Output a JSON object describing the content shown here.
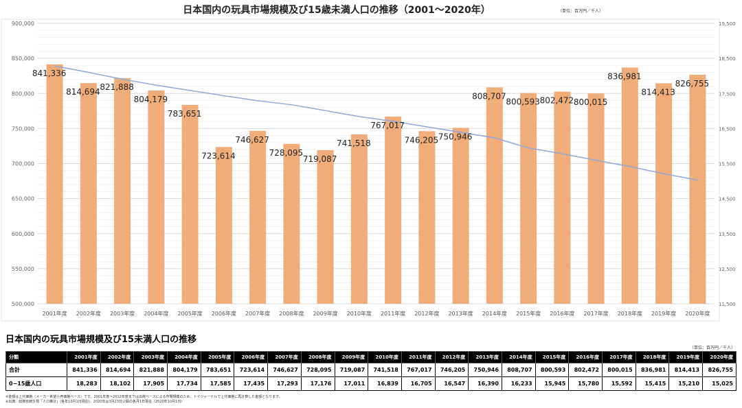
{
  "chart_data": {
    "type": "bar",
    "title": "日本国内の玩具市場規模及び15歳未満人口の推移（2001〜2020年）",
    "unit_note": "（単位：百万円／千人）",
    "categories": [
      "2001年度",
      "2002年度",
      "2003年度",
      "2004年度",
      "2005年度",
      "2006年度",
      "2007年度",
      "2008年度",
      "2009年度",
      "2010年度",
      "2011年度",
      "2012年度",
      "2013年度",
      "2014年度",
      "2015年度",
      "2016年度",
      "2017年度",
      "2018年度",
      "2019年度",
      "2020年度"
    ],
    "series": [
      {
        "name": "合計",
        "type": "bar",
        "axis": "left",
        "color": "#f0ad7a",
        "values": [
          841336,
          814694,
          821888,
          804179,
          783651,
          723614,
          746627,
          728095,
          719087,
          741518,
          767017,
          746205,
          750946,
          808707,
          800593,
          802472,
          800015,
          836981,
          814413,
          826755
        ],
        "labels": [
          "841,336",
          "814,694",
          "821,888",
          "804,179",
          "783,651",
          "723,614",
          "746,627",
          "728,095",
          "719,087",
          "741,518",
          "767,017",
          "746,205",
          "750,946",
          "808,707",
          "800,593",
          "802,472",
          "800,015",
          "836,981",
          "814,413",
          "826,755"
        ]
      },
      {
        "name": "0−15歳人口",
        "type": "line",
        "axis": "right",
        "color": "#8fa8db",
        "values": [
          18283,
          18102,
          17905,
          17734,
          17585,
          17435,
          17293,
          17176,
          17011,
          16839,
          16705,
          16547,
          16390,
          16233,
          15945,
          15780,
          15592,
          15415,
          15210,
          15025
        ]
      }
    ],
    "ylim": [
      500000,
      900000
    ],
    "yticks": [
      "500,000",
      "550,000",
      "600,000",
      "650,000",
      "700,000",
      "750,000",
      "800,000",
      "850,000",
      "900,000"
    ],
    "y2lim": [
      11500,
      19500
    ],
    "y2ticks": [
      "11,500",
      "12,500",
      "13,500",
      "14,500",
      "15,500",
      "16,500",
      "17,500",
      "18,500",
      "19,500"
    ],
    "grid": true
  },
  "table": {
    "title": "日本国内の玩具市場規模及び15未満人口の推移",
    "unit_note": "（単位：百万円／千人）",
    "header_label": "分類",
    "years": [
      "2001年度",
      "2002年度",
      "2003年度",
      "2004年度",
      "2005年度",
      "2006年度",
      "2007年度",
      "2008年度",
      "2009年度",
      "2010年度",
      "2011年度",
      "2012年度",
      "2013年度",
      "2014年度",
      "2015年度",
      "2016年度",
      "2017年度",
      "2018年度",
      "2019年度",
      "2020年度"
    ],
    "rows": [
      {
        "label": "合計",
        "values": [
          "841,336",
          "814,694",
          "821,888",
          "804,179",
          "783,651",
          "723,614",
          "746,627",
          "728,095",
          "719,087",
          "741,518",
          "767,017",
          "746,205",
          "750,946",
          "808,707",
          "800,593",
          "802,472",
          "800,015",
          "836,981",
          "814,413",
          "826,755"
        ]
      },
      {
        "label": "0−15歳人口",
        "values": [
          "18,283",
          "18,102",
          "17,905",
          "17,734",
          "17,585",
          "17,435",
          "17,293",
          "17,176",
          "17,011",
          "16,839",
          "16,705",
          "16,547",
          "16,390",
          "16,233",
          "15,945",
          "15,780",
          "15,592",
          "15,415",
          "15,210",
          "15,025"
        ]
      }
    ],
    "notes": [
      "※金額は上代価格（メーカー希望小売価格ベース）です。2001年度〜2012年度までは出荷ベースによる市場規模のため、トイジャーナルで上代価格に再計算した金額となります。",
      "※出典：総務省統計局「人口推計」(各年10月1日現在)、2020年は3月23日公開の各月1日現在（2020年10月1日）"
    ]
  }
}
